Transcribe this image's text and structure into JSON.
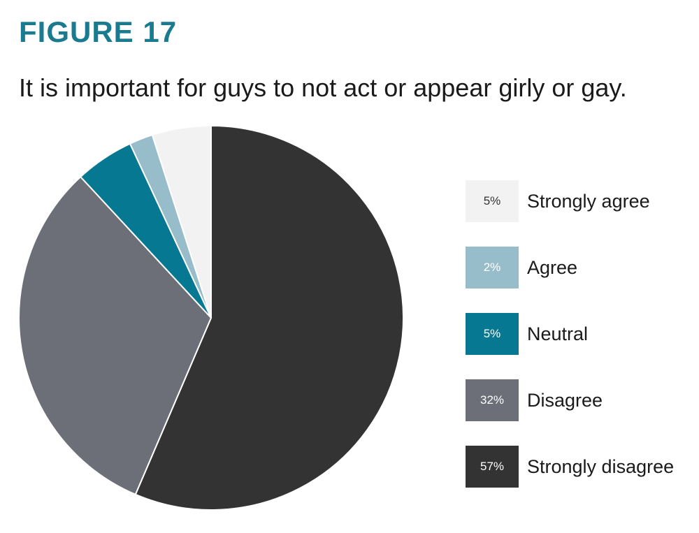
{
  "figure_label": "FIGURE 17",
  "colors": {
    "accent": "#1a7a8f",
    "strongly_agree": "#f2f2f2",
    "agree": "#97bcca",
    "neutral": "#077891",
    "disagree": "#6c6f78",
    "strongly_disagree": "#333333"
  },
  "chart_data": {
    "type": "pie",
    "title": "It is important for guys to not act or appear girly or gay.",
    "legend_position": "right",
    "slices": [
      {
        "label": "Strongly agree",
        "value": 5,
        "value_label": "5%",
        "color": "#f2f2f2",
        "text_color": "#333333"
      },
      {
        "label": "Agree",
        "value": 2,
        "value_label": "2%",
        "color": "#97bcca",
        "text_color": "#ffffff"
      },
      {
        "label": "Neutral",
        "value": 5,
        "value_label": "5%",
        "color": "#077891",
        "text_color": "#ffffff"
      },
      {
        "label": "Disagree",
        "value": 32,
        "value_label": "32%",
        "color": "#6c6f78",
        "text_color": "#ffffff"
      },
      {
        "label": "Strongly disagree",
        "value": 57,
        "value_label": "57%",
        "color": "#333333",
        "text_color": "#ffffff"
      }
    ]
  }
}
